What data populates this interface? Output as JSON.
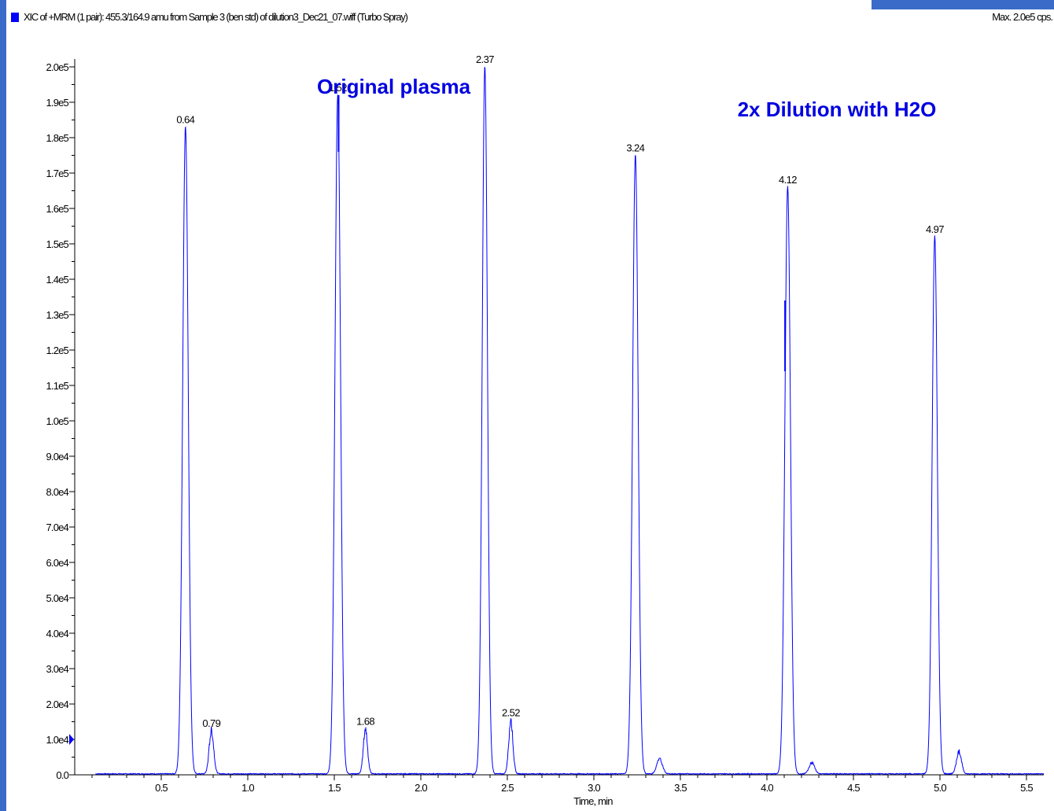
{
  "header": {
    "trace_title": "XIC of +MRM (1 pair): 455.3/164.9 amu from Sample 3 (ben std) of dilution3_Dec21_07.wiff (Turbo Spray)",
    "max_label": "Max. 2.0e5 cps."
  },
  "colors": {
    "trace": "#0000ff",
    "annotation": "#0000e0",
    "axis": "#000000",
    "frame": "#3a6bc8"
  },
  "chart_data": {
    "type": "line",
    "xlabel": "Time, min",
    "ylabel": "",
    "xlim": [
      0.0,
      5.6
    ],
    "ylim": [
      0,
      200000
    ],
    "x_ticks": [
      0.5,
      1.0,
      1.5,
      2.0,
      2.5,
      3.0,
      3.5,
      4.0,
      4.5,
      5.0,
      5.5
    ],
    "x_tick_labels": [
      "0.5",
      "1.0",
      "1.5",
      "2.0",
      "2.5",
      "3.0",
      "3.5",
      "4.0",
      "4.5",
      "5.0",
      "5.5"
    ],
    "y_ticks": [
      0,
      10000,
      20000,
      30000,
      40000,
      50000,
      60000,
      70000,
      80000,
      90000,
      100000,
      110000,
      120000,
      130000,
      140000,
      150000,
      160000,
      170000,
      180000,
      190000,
      200000
    ],
    "y_tick_labels": [
      "0.0",
      "1.0e4",
      "2.0e4",
      "3.0e4",
      "4.0e4",
      "5.0e4",
      "6.0e4",
      "7.0e4",
      "8.0e4",
      "9.0e4",
      "1.0e5",
      "1.1e5",
      "1.2e5",
      "1.3e5",
      "1.4e5",
      "1.5e5",
      "1.6e5",
      "1.7e5",
      "1.8e5",
      "1.9e5",
      "2.0e5"
    ],
    "grid": false,
    "series": [
      {
        "peaks": [
          {
            "rt": 0.64,
            "height": 183000,
            "width": 0.016,
            "label": "0.64"
          },
          {
            "rt": 0.79,
            "height": 12500,
            "width": 0.013,
            "label": "0.79"
          },
          {
            "rt": 1.52,
            "height": 192000,
            "width": 0.016,
            "label": "1.52"
          },
          {
            "rt": 1.68,
            "height": 13000,
            "width": 0.012,
            "label": "1.68"
          },
          {
            "rt": 2.37,
            "height": 200000,
            "width": 0.015,
            "label": "2.37"
          },
          {
            "rt": 2.52,
            "height": 15500,
            "width": 0.012,
            "label": "2.52"
          },
          {
            "rt": 3.24,
            "height": 175000,
            "width": 0.016,
            "label": "3.24"
          },
          {
            "rt": 3.38,
            "height": 4300,
            "width": 0.016,
            "label": ""
          },
          {
            "rt": 4.12,
            "height": 166000,
            "width": 0.016,
            "label": "4.12"
          },
          {
            "rt": 4.26,
            "height": 3200,
            "width": 0.016,
            "label": ""
          },
          {
            "rt": 4.97,
            "height": 152000,
            "width": 0.015,
            "label": "4.97"
          },
          {
            "rt": 5.11,
            "height": 6500,
            "width": 0.014,
            "label": ""
          }
        ]
      }
    ],
    "annotations": [
      {
        "text": "Original plasma",
        "x": 1.4,
        "y": 192500
      },
      {
        "text": "2x Dilution with H2O",
        "x": 3.83,
        "y": 186000
      }
    ]
  }
}
